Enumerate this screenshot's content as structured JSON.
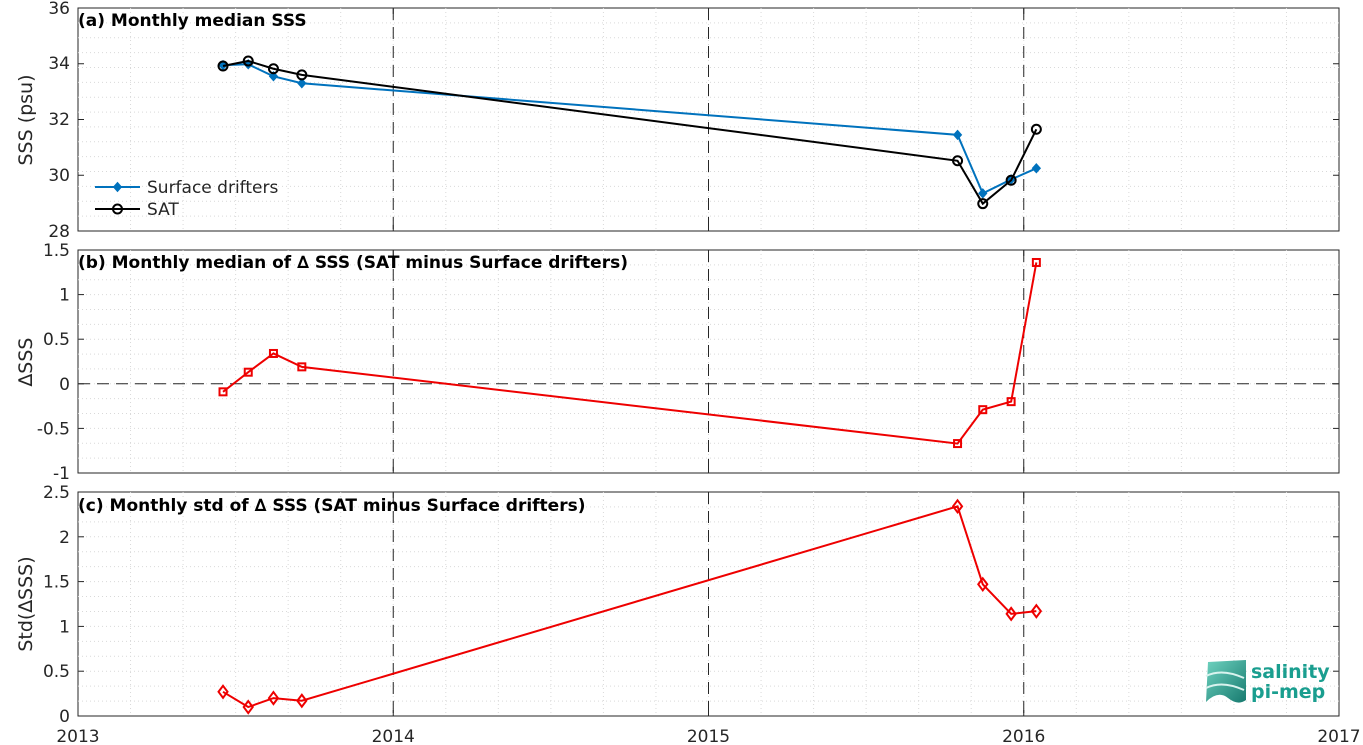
{
  "chart_data": [
    {
      "type": "line",
      "title": "(a) Monthly median SSS",
      "ylabel": "SSS (psu)",
      "ylim": [
        28,
        36
      ],
      "yticks": [
        28,
        30,
        32,
        34,
        36
      ],
      "xlim": [
        2013,
        2017
      ],
      "xticks": [
        2013,
        2014,
        2015,
        2016,
        2017
      ],
      "grid": "dotted minor grid",
      "vlines": [
        2014,
        2015,
        2016
      ],
      "legend": "lower-left",
      "series": [
        {
          "name": "Surface drifters",
          "color": "#0072BD",
          "marker": "filled-diamond",
          "x": [
            2013.46,
            2013.54,
            2013.62,
            2013.71,
            2015.79,
            2015.87,
            2015.96,
            2016.04
          ],
          "y": [
            33.95,
            33.98,
            33.55,
            33.3,
            31.45,
            29.35,
            29.85,
            30.25
          ]
        },
        {
          "name": "SAT",
          "color": "#000000",
          "marker": "open-circle",
          "x": [
            2013.46,
            2013.54,
            2013.62,
            2013.71,
            2015.79,
            2015.87,
            2015.96,
            2016.04
          ],
          "y": [
            33.92,
            34.1,
            33.82,
            33.6,
            30.52,
            28.98,
            29.82,
            31.65
          ]
        }
      ]
    },
    {
      "type": "line",
      "title": "(b) Monthly median of ∆ SSS (SAT minus Surface drifters)",
      "ylabel": "∆SSS",
      "ylim": [
        -1,
        1.5
      ],
      "yticks": [
        -1,
        -0.5,
        0,
        0.5,
        1,
        1.5
      ],
      "ytick_labels": [
        "-1",
        "-0.5",
        "0",
        "0.5",
        "1",
        "1.5"
      ],
      "xlim": [
        2013,
        2017
      ],
      "hline": 0,
      "vlines": [
        2014,
        2015,
        2016
      ],
      "series": [
        {
          "color": "#EE0000",
          "marker": "open-square",
          "x": [
            2013.46,
            2013.54,
            2013.62,
            2013.71,
            2015.79,
            2015.87,
            2015.96,
            2016.04
          ],
          "y": [
            -0.09,
            0.13,
            0.34,
            0.19,
            -0.67,
            -0.29,
            -0.2,
            1.36
          ]
        }
      ]
    },
    {
      "type": "line",
      "title": "(c) Monthly std of ∆ SSS (SAT minus Surface drifters)",
      "ylabel": "Std(∆SSS)",
      "ylim": [
        0,
        2.5
      ],
      "yticks": [
        0,
        0.5,
        1,
        1.5,
        2,
        2.5
      ],
      "ytick_labels": [
        "0",
        "0.5",
        "1",
        "1.5",
        "2",
        "2.5"
      ],
      "xlim": [
        2013,
        2017
      ],
      "xticks": [
        2013,
        2014,
        2015,
        2016,
        2017
      ],
      "xtick_labels": [
        "2013",
        "2014",
        "2015",
        "2016",
        "2017"
      ],
      "vlines": [
        2014,
        2015,
        2016
      ],
      "series": [
        {
          "color": "#EE0000",
          "marker": "open-diamond",
          "x": [
            2013.46,
            2013.54,
            2013.62,
            2013.71,
            2015.79,
            2015.87,
            2015.96,
            2016.04
          ],
          "y": [
            0.27,
            0.1,
            0.2,
            0.17,
            2.34,
            1.47,
            1.14,
            1.17
          ]
        }
      ]
    }
  ],
  "panel_a": {
    "ytick_labels": [
      "28",
      "30",
      "32",
      "34",
      "36"
    ],
    "legend_labels": [
      "Surface drifters",
      "SAT"
    ]
  },
  "logo": {
    "line1": "salinity",
    "line2": "pi-mep",
    "color": "#1a9e8f"
  }
}
